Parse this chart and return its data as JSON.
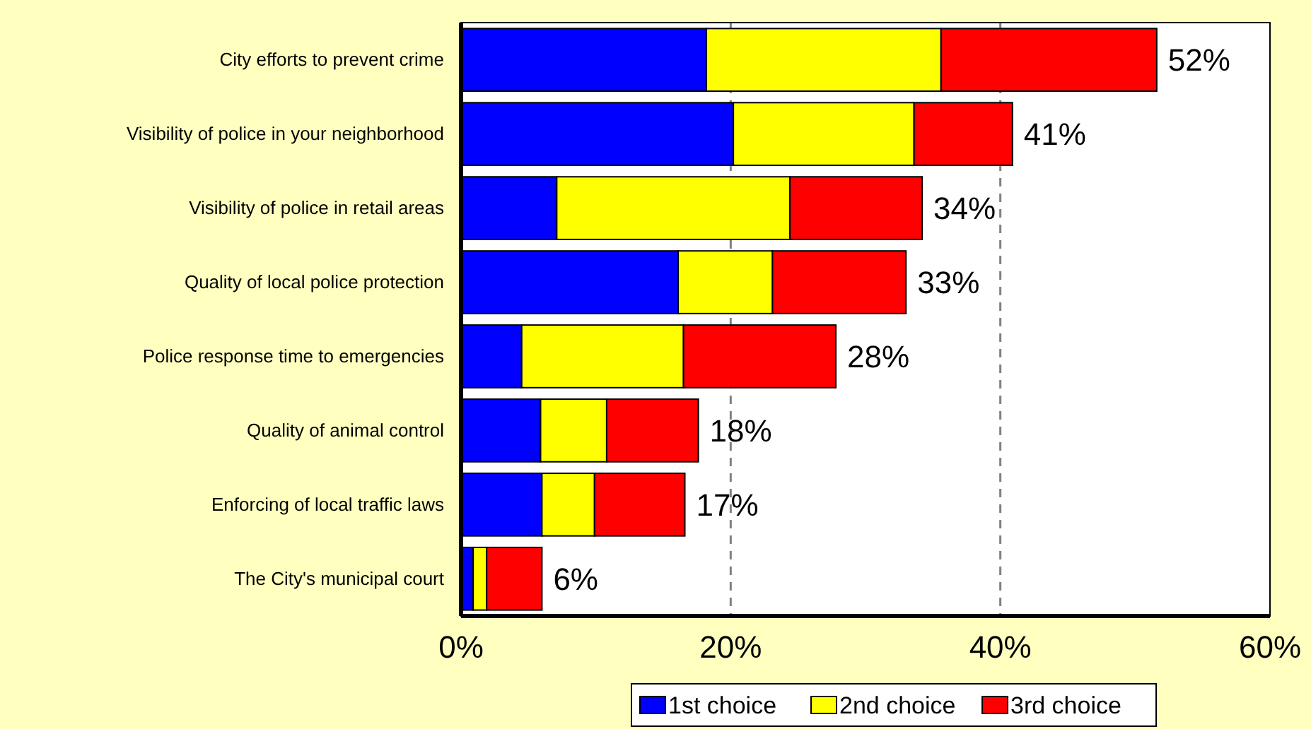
{
  "chart_data": {
    "type": "bar",
    "orientation": "horizontal",
    "stacked": true,
    "categories": [
      "City efforts to prevent crime",
      "Visibility of police in your neighborhood",
      "Visibility of police in retail areas",
      "Quality of local police protection",
      "Police response time to emergencies",
      "Quality of animal control",
      "Enforcing of local traffic laws",
      "The City's municipal court"
    ],
    "series": [
      {
        "name": "1st choice",
        "color": "#0000ff",
        "values": [
          18.2,
          20.2,
          7.1,
          16.1,
          4.5,
          5.9,
          6.0,
          0.9
        ]
      },
      {
        "name": "2nd choice",
        "color": "#ffff00",
        "values": [
          17.4,
          13.4,
          17.3,
          7.0,
          12.0,
          4.9,
          3.9,
          1.0
        ]
      },
      {
        "name": "3rd choice",
        "color": "#ff0000",
        "values": [
          16.0,
          7.3,
          9.8,
          9.9,
          11.3,
          6.8,
          6.7,
          4.1
        ]
      }
    ],
    "totals": [
      "52%",
      "41%",
      "34%",
      "33%",
      "28%",
      "18%",
      "17%",
      "6%"
    ],
    "xlim": [
      0,
      60
    ],
    "xticks": [
      {
        "value": 0,
        "label": "0%"
      },
      {
        "value": 20,
        "label": "20%"
      },
      {
        "value": 40,
        "label": "40%"
      },
      {
        "value": 60,
        "label": "60%"
      }
    ],
    "grid": "x",
    "legend": "bottom"
  }
}
